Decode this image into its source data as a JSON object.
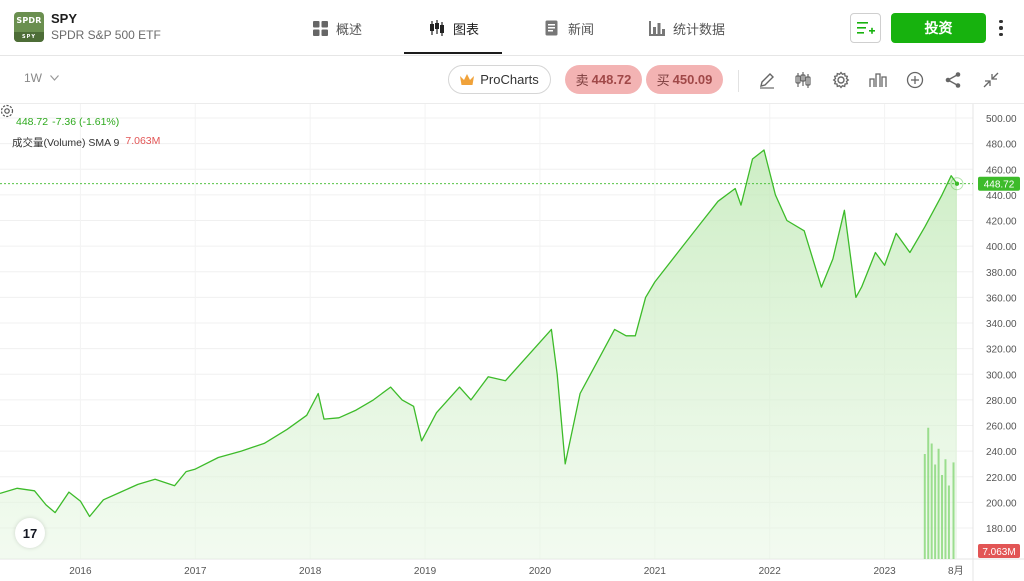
{
  "header": {
    "logo": {
      "line1": "SPDR",
      "line2": "SPY"
    },
    "ticker": "SPY",
    "fund_name": "SPDR S&P 500 ETF",
    "tabs": [
      {
        "label": "概述",
        "icon": "grid-icon"
      },
      {
        "label": "图表",
        "icon": "candlestick-icon",
        "active": true
      },
      {
        "label": "新闻",
        "icon": "news-icon"
      },
      {
        "label": "统计数据",
        "icon": "bar-stats-icon"
      }
    ],
    "invest_label": "投资",
    "brand_color": "#17b20e"
  },
  "toolbar": {
    "timeframe": "1W",
    "prochart_label": "ProCharts",
    "sell_prefix": "卖",
    "sell_price": "448.72",
    "buy_prefix": "买",
    "buy_price": "450.09",
    "tools": [
      "pencil-icon",
      "candles-icon",
      "gear-icon",
      "indicators-icon",
      "plus-circle-icon",
      "share-icon",
      "collapse-icon"
    ]
  },
  "legend": {
    "price": "448.72",
    "change": "-7.36 (-1.61%)",
    "volume_label": "成交量(Volume) SMA 9",
    "volume_value": "7.063M"
  },
  "tv_logo": "17",
  "chart_data": {
    "type": "area",
    "x_labels": [
      "2016",
      "2017",
      "2018",
      "2019",
      "2020",
      "2021",
      "2022",
      "2023",
      "8月"
    ],
    "y_ticks": [
      "180.00",
      "200.00",
      "220.00",
      "240.00",
      "260.00",
      "280.00",
      "300.00",
      "320.00",
      "340.00",
      "360.00",
      "380.00",
      "400.00",
      "420.00",
      "440.00",
      "460.00",
      "480.00",
      "500.00"
    ],
    "ylim": [
      170,
      505
    ],
    "last_price_label": "448.72",
    "last_volume_label": "7.063M",
    "line_color": "#3dbb2a",
    "series": [
      {
        "values": [
          [
            2015.3,
            207
          ],
          [
            2015.45,
            211
          ],
          [
            2015.6,
            209
          ],
          [
            2015.7,
            198
          ],
          [
            2015.78,
            192
          ],
          [
            2015.9,
            208
          ],
          [
            2016.0,
            201
          ],
          [
            2016.08,
            189
          ],
          [
            2016.2,
            202
          ],
          [
            2016.35,
            208
          ],
          [
            2016.5,
            214
          ],
          [
            2016.65,
            218
          ],
          [
            2016.82,
            213
          ],
          [
            2016.92,
            224
          ],
          [
            2017.0,
            226
          ],
          [
            2017.2,
            235
          ],
          [
            2017.4,
            240
          ],
          [
            2017.6,
            246
          ],
          [
            2017.8,
            257
          ],
          [
            2017.97,
            268
          ],
          [
            2018.07,
            285
          ],
          [
            2018.12,
            265
          ],
          [
            2018.25,
            266
          ],
          [
            2018.4,
            272
          ],
          [
            2018.55,
            280
          ],
          [
            2018.7,
            290
          ],
          [
            2018.8,
            280
          ],
          [
            2018.9,
            275
          ],
          [
            2018.97,
            248
          ],
          [
            2019.1,
            270
          ],
          [
            2019.3,
            290
          ],
          [
            2019.4,
            280
          ],
          [
            2019.55,
            298
          ],
          [
            2019.7,
            295
          ],
          [
            2019.85,
            310
          ],
          [
            2019.97,
            322
          ],
          [
            2020.1,
            335
          ],
          [
            2020.15,
            300
          ],
          [
            2020.22,
            230
          ],
          [
            2020.35,
            285
          ],
          [
            2020.5,
            310
          ],
          [
            2020.65,
            335
          ],
          [
            2020.75,
            330
          ],
          [
            2020.83,
            330
          ],
          [
            2020.92,
            360
          ],
          [
            2021.0,
            372
          ],
          [
            2021.2,
            395
          ],
          [
            2021.4,
            418
          ],
          [
            2021.55,
            435
          ],
          [
            2021.7,
            445
          ],
          [
            2021.75,
            432
          ],
          [
            2021.85,
            468
          ],
          [
            2021.95,
            475
          ],
          [
            2022.05,
            440
          ],
          [
            2022.15,
            420
          ],
          [
            2022.3,
            412
          ],
          [
            2022.45,
            368
          ],
          [
            2022.55,
            390
          ],
          [
            2022.65,
            428
          ],
          [
            2022.75,
            360
          ],
          [
            2022.8,
            368
          ],
          [
            2022.92,
            395
          ],
          [
            2023.0,
            385
          ],
          [
            2023.1,
            410
          ],
          [
            2023.22,
            395
          ],
          [
            2023.35,
            415
          ],
          [
            2023.5,
            440
          ],
          [
            2023.58,
            455
          ],
          [
            2023.63,
            448.72
          ]
        ]
      }
    ],
    "volume": [
      {
        "x": 2023.35,
        "v": 220
      },
      {
        "x": 2023.38,
        "v": 245
      },
      {
        "x": 2023.41,
        "v": 230
      },
      {
        "x": 2023.44,
        "v": 210
      },
      {
        "x": 2023.47,
        "v": 225
      },
      {
        "x": 2023.5,
        "v": 200
      },
      {
        "x": 2023.53,
        "v": 215
      },
      {
        "x": 2023.56,
        "v": 190
      },
      {
        "x": 2023.6,
        "v": 212
      }
    ]
  }
}
